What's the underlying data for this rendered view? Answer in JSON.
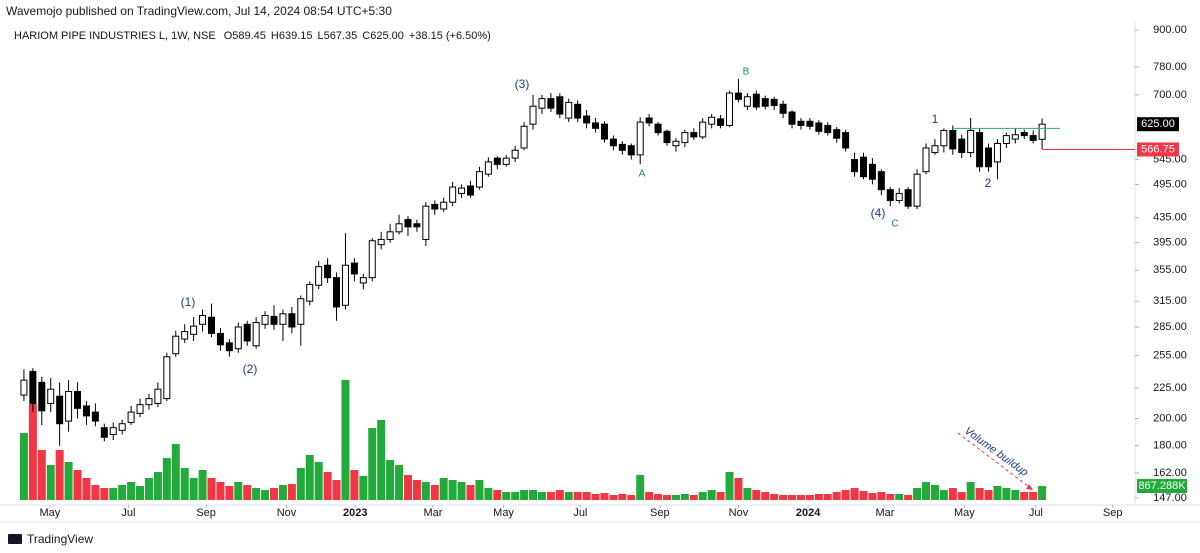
{
  "header": {
    "publisher": "Wavemojo published on TradingView.com, Jul 14, 2024 08:54 UTC+5:30",
    "footer": "TradingView"
  },
  "chart_data": {
    "type": "candlestick",
    "title": "HARIOM PIPE INDUSTRIES L, 1W, NSE",
    "legend": [
      "O589.45",
      "H639.15",
      "L567.35",
      "C625.00",
      "+38.15 (+6.50%)"
    ],
    "ohlc": [
      [
        219,
        242,
        214,
        232
      ],
      [
        240,
        243,
        205,
        212
      ],
      [
        230,
        235,
        195,
        206
      ],
      [
        212,
        234,
        205,
        224
      ],
      [
        218,
        230,
        180,
        196
      ],
      [
        198,
        232,
        190,
        222
      ],
      [
        222,
        230,
        200,
        208
      ],
      [
        210,
        214,
        195,
        202
      ],
      [
        205,
        212,
        194,
        198
      ],
      [
        193,
        196,
        183,
        186
      ],
      [
        188,
        197,
        184,
        193
      ],
      [
        191,
        199,
        188,
        196
      ],
      [
        197,
        210,
        195,
        205
      ],
      [
        204,
        216,
        201,
        211
      ],
      [
        211,
        220,
        207,
        216
      ],
      [
        212,
        230,
        209,
        224
      ],
      [
        216,
        258,
        214,
        254
      ],
      [
        257,
        281,
        254,
        275
      ],
      [
        272,
        288,
        268,
        280
      ],
      [
        277,
        296,
        270,
        286
      ],
      [
        288,
        305,
        280,
        298
      ],
      [
        296,
        312,
        274,
        278
      ],
      [
        278,
        284,
        260,
        266
      ],
      [
        268,
        272,
        254,
        260
      ],
      [
        262,
        290,
        258,
        285
      ],
      [
        288,
        292,
        265,
        270
      ],
      [
        265,
        296,
        262,
        290
      ],
      [
        288,
        303,
        283,
        298
      ],
      [
        297,
        310,
        282,
        288
      ],
      [
        288,
        305,
        270,
        300
      ],
      [
        300,
        308,
        278,
        285
      ],
      [
        288,
        322,
        265,
        318
      ],
      [
        315,
        340,
        310,
        336
      ],
      [
        335,
        368,
        330,
        360
      ],
      [
        362,
        372,
        338,
        345
      ],
      [
        345,
        352,
        292,
        308
      ],
      [
        310,
        410,
        305,
        362
      ],
      [
        365,
        372,
        340,
        350
      ],
      [
        338,
        350,
        330,
        345
      ],
      [
        345,
        402,
        340,
        398
      ],
      [
        392,
        412,
        385,
        400
      ],
      [
        400,
        425,
        395,
        412
      ],
      [
        412,
        440,
        408,
        425
      ],
      [
        432,
        438,
        405,
        420
      ],
      [
        425,
        432,
        412,
        420
      ],
      [
        400,
        462,
        390,
        455
      ],
      [
        458,
        465,
        440,
        450
      ],
      [
        450,
        470,
        445,
        462
      ],
      [
        462,
        500,
        455,
        490
      ],
      [
        478,
        495,
        470,
        488
      ],
      [
        492,
        502,
        470,
        475
      ],
      [
        490,
        530,
        485,
        520
      ],
      [
        515,
        550,
        510,
        540
      ],
      [
        548,
        552,
        525,
        535
      ],
      [
        535,
        555,
        530,
        548
      ],
      [
        548,
        575,
        540,
        565
      ],
      [
        570,
        630,
        565,
        620
      ],
      [
        625,
        700,
        612,
        670
      ],
      [
        665,
        700,
        650,
        690
      ],
      [
        690,
        705,
        655,
        665
      ],
      [
        695,
        705,
        640,
        650
      ],
      [
        640,
        690,
        630,
        680
      ],
      [
        675,
        685,
        630,
        640
      ],
      [
        645,
        660,
        615,
        628
      ],
      [
        628,
        640,
        605,
        615
      ],
      [
        625,
        632,
        582,
        590
      ],
      [
        590,
        598,
        565,
        575
      ],
      [
        578,
        585,
        555,
        565
      ],
      [
        575,
        580,
        545,
        555
      ],
      [
        555,
        642,
        535,
        630
      ],
      [
        640,
        650,
        620,
        628
      ],
      [
        625,
        630,
        598,
        605
      ],
      [
        608,
        612,
        575,
        582
      ],
      [
        575,
        592,
        562,
        585
      ],
      [
        582,
        612,
        572,
        605
      ],
      [
        605,
        615,
        588,
        595
      ],
      [
        595,
        640,
        590,
        630
      ],
      [
        625,
        650,
        615,
        642
      ],
      [
        638,
        648,
        615,
        622
      ],
      [
        622,
        712,
        618,
        705
      ],
      [
        705,
        745,
        680,
        688
      ],
      [
        670,
        705,
        660,
        695
      ],
      [
        702,
        712,
        660,
        668
      ],
      [
        690,
        698,
        662,
        670
      ],
      [
        688,
        695,
        660,
        672
      ],
      [
        675,
        685,
        640,
        652
      ],
      [
        655,
        660,
        615,
        625
      ],
      [
        632,
        640,
        612,
        622
      ],
      [
        632,
        640,
        612,
        620
      ],
      [
        628,
        635,
        600,
        608
      ],
      [
        622,
        630,
        598,
        605
      ],
      [
        612,
        618,
        582,
        592
      ],
      [
        605,
        612,
        562,
        570
      ],
      [
        545,
        560,
        510,
        520
      ],
      [
        550,
        560,
        505,
        510
      ],
      [
        535,
        548,
        495,
        505
      ],
      [
        520,
        525,
        475,
        485
      ],
      [
        485,
        490,
        455,
        465
      ],
      [
        465,
        488,
        460,
        478
      ],
      [
        485,
        490,
        450,
        455
      ],
      [
        455,
        525,
        450,
        515
      ],
      [
        520,
        580,
        515,
        570
      ],
      [
        560,
        590,
        555,
        575
      ],
      [
        575,
        615,
        560,
        610
      ],
      [
        610,
        622,
        555,
        568
      ],
      [
        590,
        600,
        548,
        560
      ],
      [
        560,
        640,
        550,
        610
      ],
      [
        605,
        615,
        520,
        530
      ],
      [
        570,
        580,
        520,
        530
      ],
      [
        540,
        590,
        505,
        580
      ],
      [
        580,
        605,
        570,
        598
      ],
      [
        590,
        615,
        580,
        600
      ],
      [
        605,
        612,
        590,
        598
      ],
      [
        598,
        610,
        580,
        587
      ],
      [
        589.45,
        639.15,
        567.35,
        625.0
      ]
    ],
    "volume": [
      4154,
      5952,
      3100,
      2170,
      3100,
      2356,
      1860,
      1364,
      930,
      744,
      744,
      930,
      1116,
      868,
      1364,
      1736,
      2604,
      3472,
      1984,
      1364,
      1860,
      1364,
      1116,
      868,
      1116,
      930,
      744,
      620,
      744,
      930,
      992,
      1984,
      2790,
      2356,
      1736,
      1240,
      7440,
      1860,
      1488,
      4464,
      4960,
      2480,
      2170,
      1550,
      1240,
      1116,
      930,
      1364,
      1240,
      1116,
      930,
      1240,
      744,
      620,
      496,
      496,
      620,
      620,
      496,
      496,
      620,
      496,
      496,
      496,
      372,
      434,
      310,
      372,
      310,
      1550,
      496,
      372,
      310,
      310,
      372,
      310,
      496,
      620,
      496,
      1736,
      1364,
      744,
      620,
      496,
      372,
      310,
      310,
      310,
      310,
      372,
      372,
      496,
      620,
      744,
      558,
      434,
      496,
      372,
      372,
      310,
      744,
      1116,
      930,
      620,
      744,
      496,
      1116,
      744,
      620,
      868,
      744,
      620,
      496,
      496,
      867.288
    ],
    "volume_label": "867.288K",
    "vlim": [
      0,
      7500
    ],
    "close_label": "625.00",
    "level": {
      "value": 566.75,
      "label": "566.75",
      "color": "#f23645"
    },
    "resistance": {
      "value": 615,
      "color": "#26a69a"
    },
    "up_color": "#ffffff",
    "down_color": "#000000",
    "volume_up_color": "#22ab3a",
    "volume_down_color": "#f23645",
    "log_scale": true,
    "ylim": [
      147,
      900
    ],
    "yticks": [
      {
        "value": 900,
        "label": "900.00"
      },
      {
        "value": 780,
        "label": "780.00"
      },
      {
        "value": 700,
        "label": "700.00"
      },
      {
        "value": 545,
        "label": "545.00"
      },
      {
        "value": 495,
        "label": "495.00"
      },
      {
        "value": 435,
        "label": "435.00"
      },
      {
        "value": 395,
        "label": "395.00"
      },
      {
        "value": 355,
        "label": "355.00"
      },
      {
        "value": 315,
        "label": "315.00"
      },
      {
        "value": 285,
        "label": "285.00"
      },
      {
        "value": 255,
        "label": "255.00"
      },
      {
        "value": 225,
        "label": "225.00"
      },
      {
        "value": 200,
        "label": "200.00"
      },
      {
        "value": 180,
        "label": "180.00"
      },
      {
        "value": 162,
        "label": "162.00"
      },
      {
        "value": 147,
        "label": "147.00"
      }
    ],
    "xlim": [
      -1,
      124.4
    ],
    "xticks": [
      {
        "value": 2.9,
        "label": "May"
      },
      {
        "value": 11.7,
        "label": "Jul"
      },
      {
        "value": 20.4,
        "label": "Sep"
      },
      {
        "value": 29.4,
        "label": "Nov"
      },
      {
        "value": 37.1,
        "label": "2023"
      },
      {
        "value": 45.8,
        "label": "Mar"
      },
      {
        "value": 53.7,
        "label": "May"
      },
      {
        "value": 62.3,
        "label": "Jul"
      },
      {
        "value": 71.2,
        "label": "Sep"
      },
      {
        "value": 80,
        "label": "Nov"
      },
      {
        "value": 87.8,
        "label": "2024"
      },
      {
        "value": 96.4,
        "label": "Mar"
      },
      {
        "value": 105.3,
        "label": "May"
      },
      {
        "value": 113.3,
        "label": "Jul"
      },
      {
        "value": 121.9,
        "label": "Sep"
      }
    ],
    "annotations": [
      "(1)",
      "(2)",
      "(3)",
      "(4)",
      "A",
      "B",
      "C",
      "1",
      "2"
    ],
    "note": "Volume buildup"
  }
}
